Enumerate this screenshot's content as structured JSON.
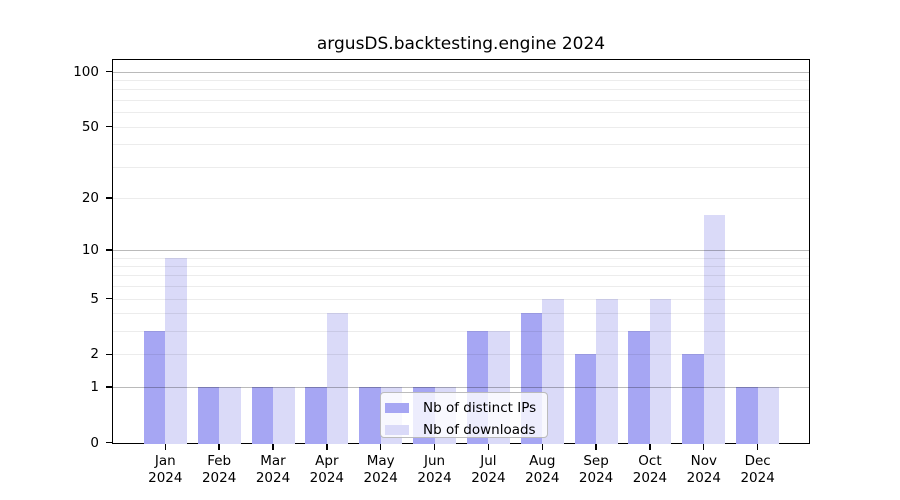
{
  "chart_data": {
    "type": "bar",
    "title": "argusDS.backtesting.engine 2024",
    "year": "2024",
    "categories": [
      "Jan",
      "Feb",
      "Mar",
      "Apr",
      "May",
      "Jun",
      "Jul",
      "Aug",
      "Sep",
      "Oct",
      "Nov",
      "Dec"
    ],
    "series": [
      {
        "name": "Nb of distinct IPs",
        "color": "#a6a6f3",
        "values": [
          3,
          1,
          1,
          1,
          1,
          1,
          3,
          4,
          2,
          3,
          2,
          1
        ]
      },
      {
        "name": "Nb of downloads",
        "color": "#dadaf8",
        "values": [
          9,
          1,
          1,
          4,
          1,
          1,
          3,
          5,
          5,
          5,
          16,
          1
        ]
      }
    ],
    "yscale": "log1p",
    "ylim": [
      0,
      113
    ],
    "y_ticks": [
      0,
      1,
      2,
      5,
      10,
      20,
      50,
      100
    ],
    "y_major_gridlines": [
      1,
      10,
      100
    ],
    "y_minor_gridlines": [
      2,
      3,
      4,
      5,
      6,
      7,
      8,
      9,
      20,
      30,
      40,
      50,
      60,
      70,
      80,
      90
    ],
    "grid": "on",
    "legend_position": "lower-center",
    "colors": {
      "distinct_ips": "#a6a6f3",
      "downloads": "#dadaf8",
      "major_grid": "#b9b9b9",
      "minor_grid": "#ececec",
      "axis": "#000000"
    }
  }
}
